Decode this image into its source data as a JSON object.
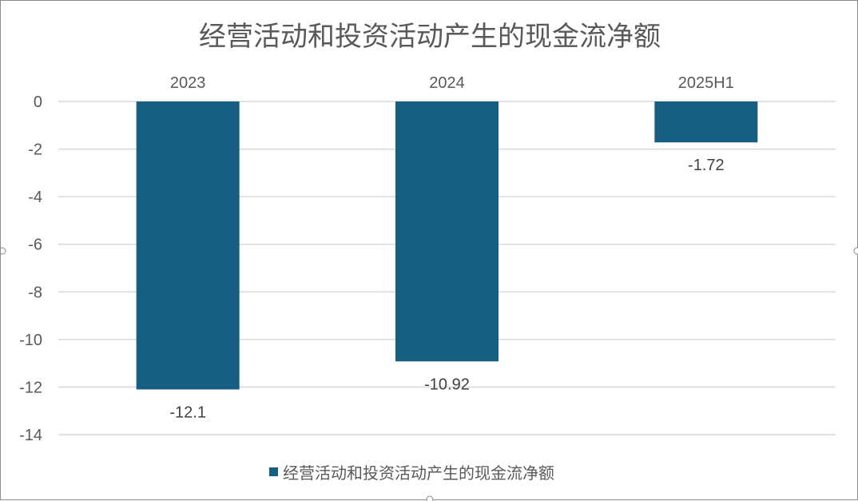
{
  "chart_data": {
    "type": "bar",
    "title": "经营活动和投资活动产生的现金流净额",
    "categories": [
      "2023",
      "2024",
      "2025H1"
    ],
    "series": [
      {
        "name": "经营活动和投资活动产生的现金流净额",
        "values": [
          -12.1,
          -10.92,
          -1.72
        ],
        "data_labels": [
          "-12.1",
          "-10.92",
          "-1.72"
        ],
        "color": "#175f82"
      }
    ],
    "ylim": [
      -14,
      0
    ],
    "yticks": [
      "0",
      "-2",
      "-4",
      "-6",
      "-8",
      "-10",
      "-12",
      "-14"
    ],
    "xlabel": "",
    "ylabel": "",
    "grid": true,
    "category_axis_position": "top",
    "legend_position": "bottom"
  },
  "colors": {
    "bar": "#175f82",
    "grid": "#d9d9d9",
    "text": "#595959",
    "frame": "#8a8a8a"
  }
}
